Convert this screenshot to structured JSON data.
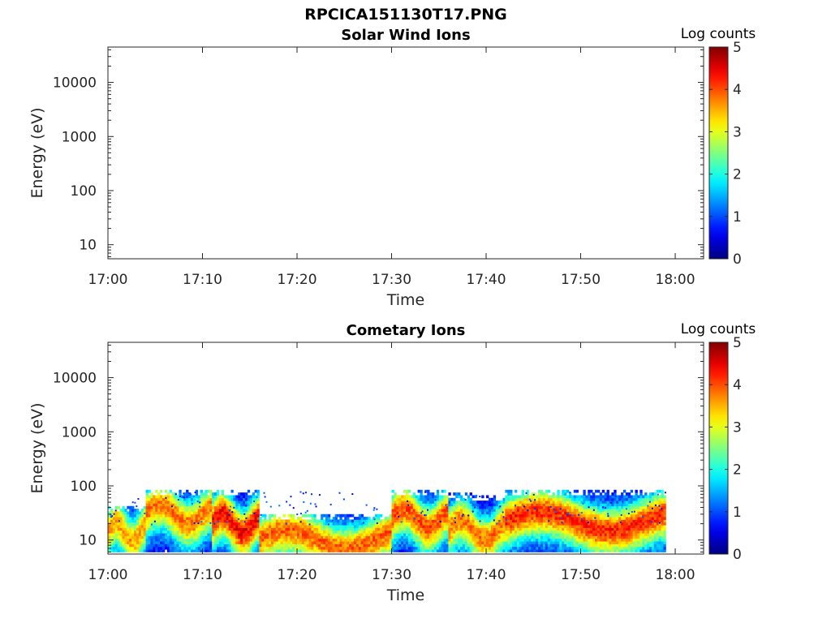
{
  "figure_title": "RPCICA151130T17.PNG",
  "chart_data": [
    {
      "type": "heatmap",
      "title": "Solar Wind Ions",
      "xlabel": "Time",
      "ylabel": "Energy (eV)",
      "x_ticks": [
        "17:00",
        "17:10",
        "17:20",
        "17:30",
        "17:40",
        "17:50",
        "18:00"
      ],
      "xlim_minutes": [
        0,
        63
      ],
      "y_scale": "log",
      "y_ticks": [
        {
          "value": 10,
          "label": "10"
        },
        {
          "value": 100,
          "label": "100"
        },
        {
          "value": 1000,
          "label": "1000"
        },
        {
          "value": 10000,
          "label": "10000"
        }
      ],
      "ylim": [
        5.5,
        45000
      ],
      "colorbar": {
        "label": "Log counts",
        "range": [
          0,
          5
        ],
        "ticks": [
          "0",
          "1",
          "2",
          "3",
          "4",
          "5"
        ],
        "colormap": "jet"
      },
      "bands": []
    },
    {
      "type": "heatmap",
      "title": "Cometary Ions",
      "xlabel": "Time",
      "ylabel": "Energy (eV)",
      "x_ticks": [
        "17:00",
        "17:10",
        "17:20",
        "17:30",
        "17:40",
        "17:50",
        "18:00"
      ],
      "xlim_minutes": [
        0,
        63
      ],
      "y_scale": "log",
      "y_ticks": [
        {
          "value": 10,
          "label": "10"
        },
        {
          "value": 100,
          "label": "100"
        },
        {
          "value": 1000,
          "label": "1000"
        },
        {
          "value": 10000,
          "label": "10000"
        }
      ],
      "ylim": [
        5.5,
        45000
      ],
      "colorbar": {
        "label": "Log counts",
        "range": [
          0,
          5
        ],
        "ticks": [
          "0",
          "1",
          "2",
          "3",
          "4",
          "5"
        ],
        "colormap": "jet"
      },
      "data_time_range_minutes": [
        0,
        59
      ],
      "bands": [
        {
          "t_start": 0,
          "t_end": 4,
          "e_min": 6,
          "e_max": 40,
          "peak_energy": 14,
          "peak_log_counts": 3.0
        },
        {
          "t_start": 4,
          "t_end": 11,
          "e_min": 6,
          "e_max": 80,
          "peak_energy": 30,
          "peak_log_counts": 3.2
        },
        {
          "t_start": 11,
          "t_end": 16,
          "e_min": 6,
          "e_max": 80,
          "peak_energy": 20,
          "peak_log_counts": 3.8
        },
        {
          "t_start": 16,
          "t_end": 30,
          "e_min": 6,
          "e_max": 30,
          "peak_energy": 10,
          "peak_log_counts": 3.3
        },
        {
          "t_start": 30,
          "t_end": 36,
          "e_min": 6,
          "e_max": 80,
          "peak_energy": 25,
          "peak_log_counts": 3.4
        },
        {
          "t_start": 36,
          "t_end": 42,
          "e_min": 6,
          "e_max": 70,
          "peak_energy": 15,
          "peak_log_counts": 3.2
        },
        {
          "t_start": 42,
          "t_end": 59,
          "e_min": 6,
          "e_max": 80,
          "peak_energy": 22,
          "peak_log_counts": 3.6
        }
      ]
    }
  ]
}
